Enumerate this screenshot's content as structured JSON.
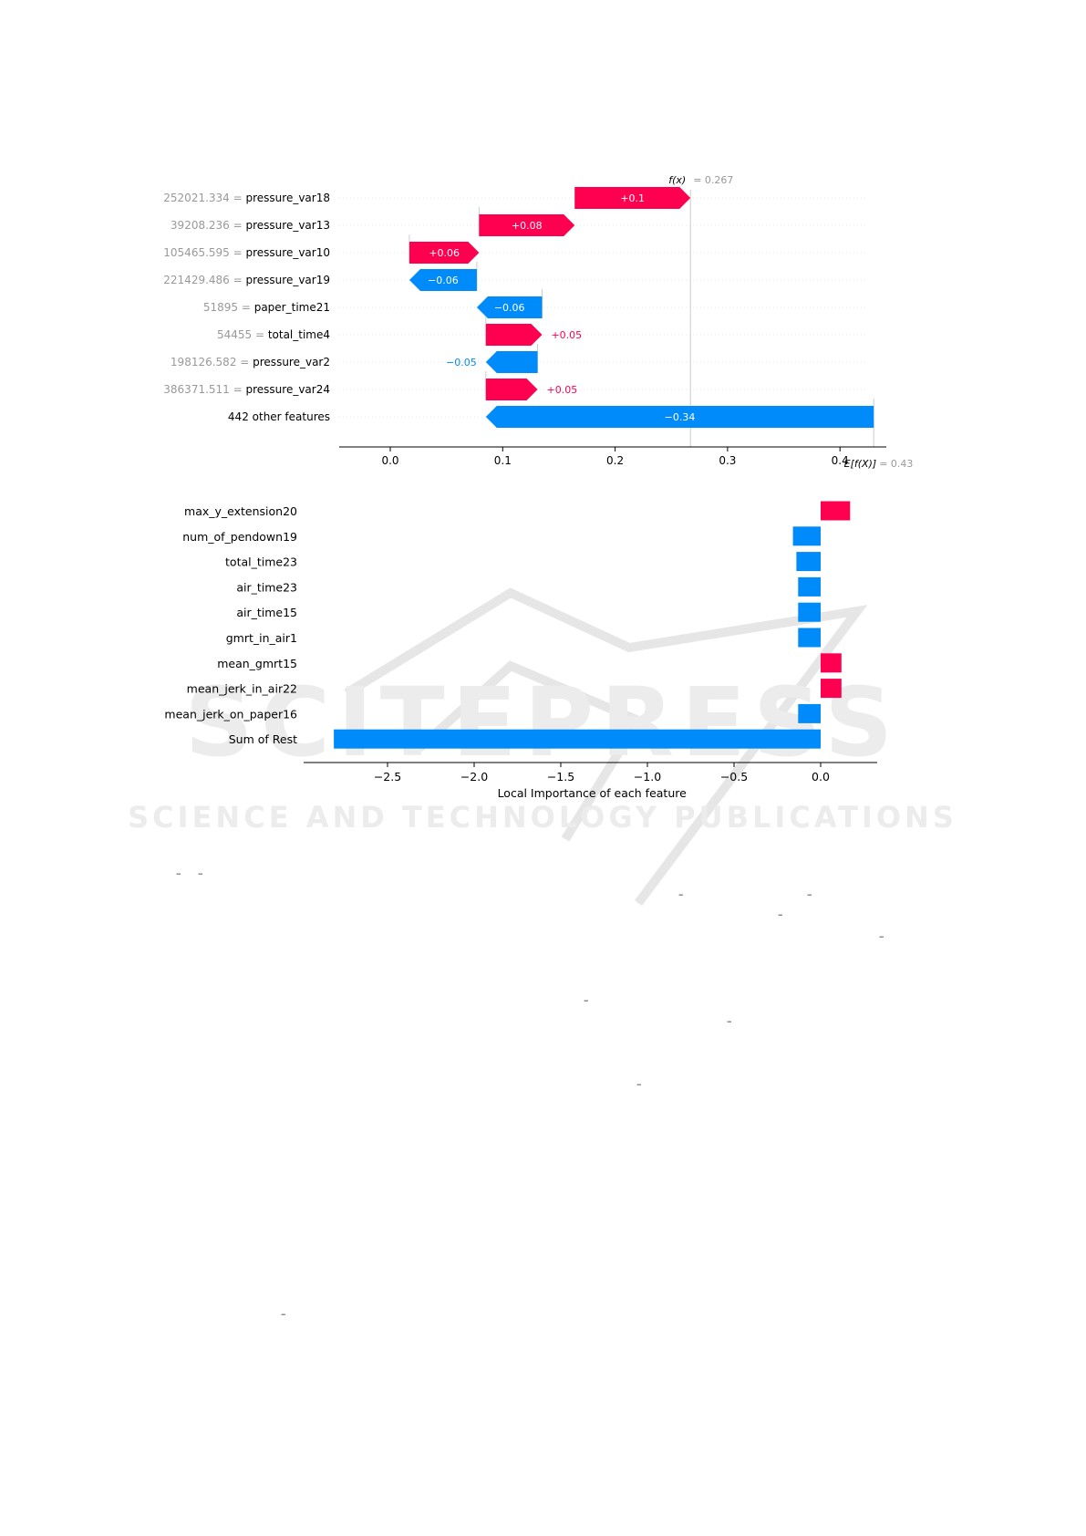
{
  "chart_data": [
    {
      "type": "waterfall",
      "fx_label": "f(x)",
      "fx_value": "= 0.267",
      "efx_label": "E[f(X)]",
      "efx_value": "= 0.43",
      "xlim": [
        -0.05,
        0.43
      ],
      "ticks": [
        0.0,
        0.1,
        0.2,
        0.3,
        0.4
      ],
      "tick_labels": [
        "0.0",
        "0.1",
        "0.2",
        "0.3",
        "0.4"
      ],
      "fx": 0.267,
      "efx": 0.43,
      "colors": {
        "positive": "#ff0051",
        "negative": "#008bfb",
        "value_text": "#999999",
        "grid": "#cccccc"
      },
      "rows": [
        {
          "value": "252021.334",
          "feature": "pressure_var18",
          "start": 0.164,
          "end": 0.267,
          "label": "+0.1"
        },
        {
          "value": "39208.236",
          "feature": "pressure_var13",
          "start": 0.079,
          "end": 0.164,
          "label": "+0.08"
        },
        {
          "value": "105465.595",
          "feature": "pressure_var10",
          "start": 0.017,
          "end": 0.079,
          "label": "+0.06"
        },
        {
          "value": "221429.486",
          "feature": "pressure_var19",
          "start": 0.077,
          "end": 0.017,
          "label": "−0.06"
        },
        {
          "value": "51895",
          "feature": "paper_time21",
          "start": 0.135,
          "end": 0.077,
          "label": "−0.06"
        },
        {
          "value": "54455",
          "feature": "total_time4",
          "start": 0.085,
          "end": 0.135,
          "label": "+0.05"
        },
        {
          "value": "198126.582",
          "feature": "pressure_var2",
          "start": 0.131,
          "end": 0.085,
          "label": "−0.05"
        },
        {
          "value": "386371.511",
          "feature": "pressure_var24",
          "start": 0.085,
          "end": 0.131,
          "label": "+0.05"
        },
        {
          "value": "",
          "feature": "442 other features",
          "start": 0.43,
          "end": 0.085,
          "label": "−0.34"
        }
      ]
    },
    {
      "type": "bar",
      "orientation": "horizontal",
      "xlabel": "Local Importance of each feature",
      "xlim": [
        -2.7,
        0.33
      ],
      "ticks": [
        -2.5,
        -2.0,
        -1.5,
        -1.0,
        -0.5,
        0.0
      ],
      "tick_labels": [
        "−2.5",
        "−2.0",
        "−1.5",
        "−1.0",
        "−0.5",
        "0.0"
      ],
      "categories": [
        "max_y_extension20",
        "num_of_pendown19",
        "total_time23",
        "air_time23",
        "air_time15",
        "gmrt_in_air1",
        "mean_gmrt15",
        "mean_jerk_in_air22",
        "mean_jerk_on_paper16",
        "Sum of Rest"
      ],
      "values": [
        0.17,
        -0.16,
        -0.14,
        -0.13,
        -0.13,
        -0.13,
        0.12,
        0.12,
        -0.13,
        -2.81
      ],
      "colors": {
        "positive": "#ff0051",
        "negative": "#008bfb"
      }
    }
  ],
  "watermark": {
    "brand": "SCITEPRESS",
    "tagline": "SCIENCE AND TECHNOLOGY PUBLICATIONS"
  },
  "stray_marks": [
    "–",
    "–",
    "–",
    "–",
    "–",
    "–",
    "–",
    "–",
    "–",
    "–",
    "–"
  ]
}
